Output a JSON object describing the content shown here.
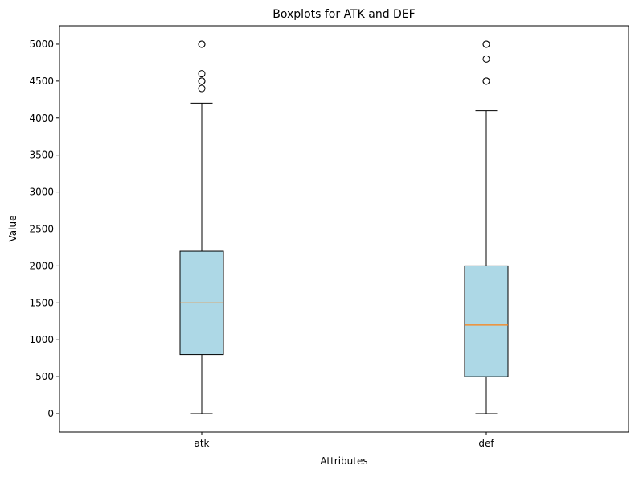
{
  "chart_data": {
    "type": "boxplot",
    "title": "Boxplots for ATK and DEF",
    "xlabel": "Attributes",
    "ylabel": "Value",
    "categories": [
      "atk",
      "def"
    ],
    "ylim": [
      -250,
      5250
    ],
    "yticks": [
      0,
      500,
      1000,
      1500,
      2000,
      2500,
      3000,
      3500,
      4000,
      4500,
      5000
    ],
    "grid": false,
    "legend": "none",
    "box_color": "#add8e6",
    "median_color": "#ff7f0e",
    "series": [
      {
        "category": "atk",
        "whisker_low": 0,
        "q1": 800,
        "median": 1500,
        "q3": 2200,
        "whisker_high": 4200,
        "outliers": [
          4400,
          4500,
          4500,
          4600,
          5000,
          5000
        ]
      },
      {
        "category": "def",
        "whisker_low": 0,
        "q1": 500,
        "median": 1200,
        "q3": 2000,
        "whisker_high": 4100,
        "outliers": [
          4500,
          4500,
          4800,
          5000,
          5000
        ]
      }
    ]
  }
}
